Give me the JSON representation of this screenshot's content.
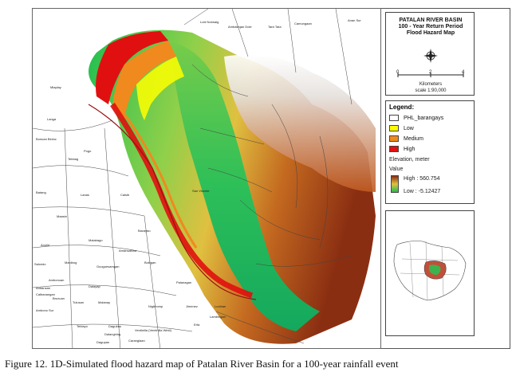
{
  "title_block": {
    "line1": "PATALAN RIVER BASIN",
    "line2": "100 - Year Return Period",
    "line3": "Flood Hazard Map",
    "scale_ticks": [
      "0",
      "2",
      "4"
    ],
    "units": "Kilometers",
    "scale": "scale 1:90,000",
    "north_symbol": "compass-rose-icon"
  },
  "legend": {
    "title": "Legend:",
    "items": [
      {
        "label": "PHL_barangays",
        "color": "#ffffff"
      },
      {
        "label": "Low",
        "color": "#ffff00"
      },
      {
        "label": "Medium",
        "color": "#f08a1e"
      },
      {
        "label": "High",
        "color": "#e01010"
      }
    ],
    "elevation_title": "Elevation, meter",
    "value_label": "Value",
    "high": "High : 560.754",
    "low": "Low : -5.12427"
  },
  "map_labels": [
    "Lubi Norwaig",
    "Ambaleqan Dole",
    "Tara Tara",
    "Camungaan",
    "Anan Sur",
    "Mlaplay",
    "Langa",
    "Bonuan Binloc",
    "Pogo",
    "Tebbag",
    "Batang",
    "Lanas",
    "Calsib",
    "Maasin",
    "Anolid",
    "Malabago",
    "Salcedo",
    "Manibog",
    "Bacayao",
    "Amansabina",
    "Andansan",
    "Calbanangan",
    "Bokigan",
    "Guoguesamgan",
    "Dalayap",
    "Bruxuan",
    "Tulusan",
    "Malanay",
    "Nigbbomp",
    "Ambono Sur",
    "Ambonuan",
    "Palanagan",
    "San Vicente",
    "Jimenez",
    "Erfa",
    "Lunihan",
    "Lambingan",
    "Tebiayo",
    "Daguiras",
    "Ventinilla (Ventinilla West)",
    "Dalangiring",
    "Dagupan",
    "Caranglaan"
  ],
  "caption": "Figure 12. 1D-Simulated flood hazard map of Patalan River Basin for a 100-year rainfall event",
  "colors": {
    "high": "#e01010",
    "medium": "#f08a1e",
    "low": "#ffff00",
    "elev_low": "#22c35a",
    "elev_mid": "#d8c050",
    "elev_high": "#8a3a1a"
  }
}
